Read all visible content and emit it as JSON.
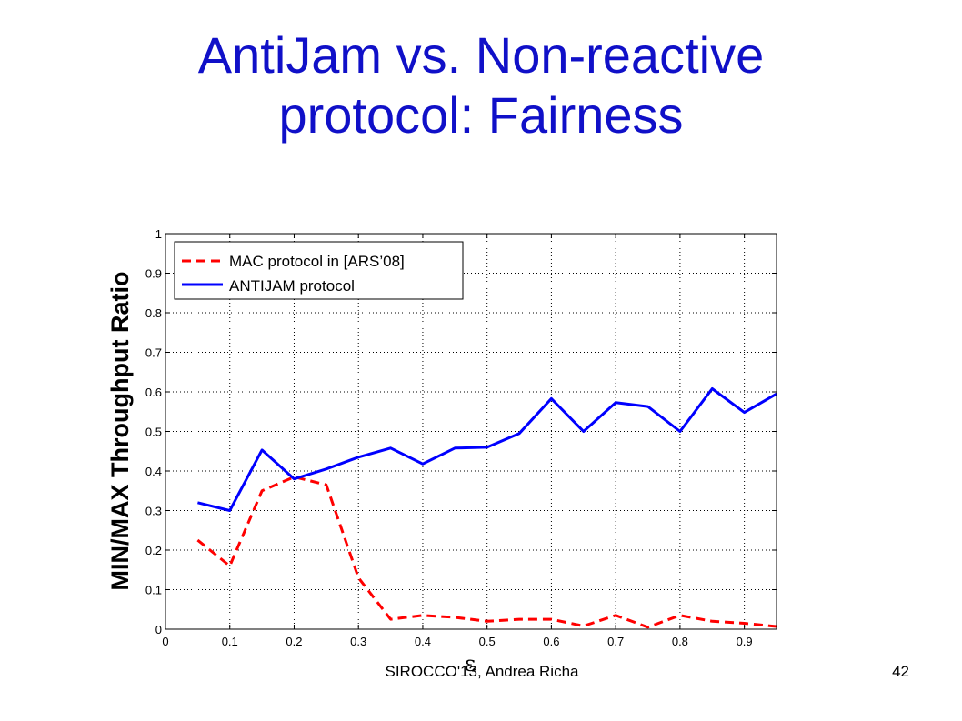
{
  "slide": {
    "title_line1": "AntiJam vs. Non-reactive",
    "title_line2": "protocol: Fairness",
    "footer": "SIROCCO'13, Andrea Richa",
    "page_number": "42"
  },
  "chart_data": {
    "type": "line",
    "title": "",
    "xlabel": "ε",
    "ylabel": "MIN/MAX Throughput Ratio",
    "xlim": [
      0,
      0.95
    ],
    "ylim": [
      0,
      1
    ],
    "xticks": [
      0,
      0.1,
      0.2,
      0.3,
      0.4,
      0.5,
      0.6,
      0.7,
      0.8,
      0.9
    ],
    "xtick_labels": [
      "0",
      "0.1",
      "0.2",
      "0.3",
      "0.4",
      "0.5",
      "0.6",
      "0.7",
      "0.8",
      "0.9"
    ],
    "yticks": [
      0,
      0.1,
      0.2,
      0.3,
      0.4,
      0.5,
      0.6,
      0.7,
      0.8,
      0.9,
      1
    ],
    "ytick_labels": [
      "0",
      "0.1",
      "0.2",
      "0.3",
      "0.4",
      "0.5",
      "0.6",
      "0.7",
      "0.8",
      "0.9",
      "1"
    ],
    "grid": true,
    "legend": "top-left",
    "x": [
      0.05,
      0.1,
      0.15,
      0.2,
      0.25,
      0.3,
      0.35,
      0.4,
      0.45,
      0.5,
      0.55,
      0.6,
      0.65,
      0.7,
      0.75,
      0.8,
      0.85,
      0.9,
      0.95
    ],
    "series": [
      {
        "name": "MAC protocol in [ARS’08]",
        "color": "#ff0000",
        "style": "dashed",
        "values": [
          0.225,
          0.16,
          0.35,
          0.385,
          0.365,
          0.13,
          0.025,
          0.035,
          0.03,
          0.02,
          0.025,
          0.025,
          0.008,
          0.035,
          0.005,
          0.035,
          0.02,
          0.015,
          0.007
        ]
      },
      {
        "name": "ANTIJAM protocol",
        "color": "#0000ff",
        "style": "solid",
        "values": [
          0.32,
          0.3,
          0.453,
          0.38,
          0.405,
          0.435,
          0.458,
          0.418,
          0.458,
          0.46,
          0.495,
          0.583,
          0.5,
          0.573,
          0.563,
          0.5,
          0.608,
          0.548,
          0.595
        ]
      }
    ]
  }
}
